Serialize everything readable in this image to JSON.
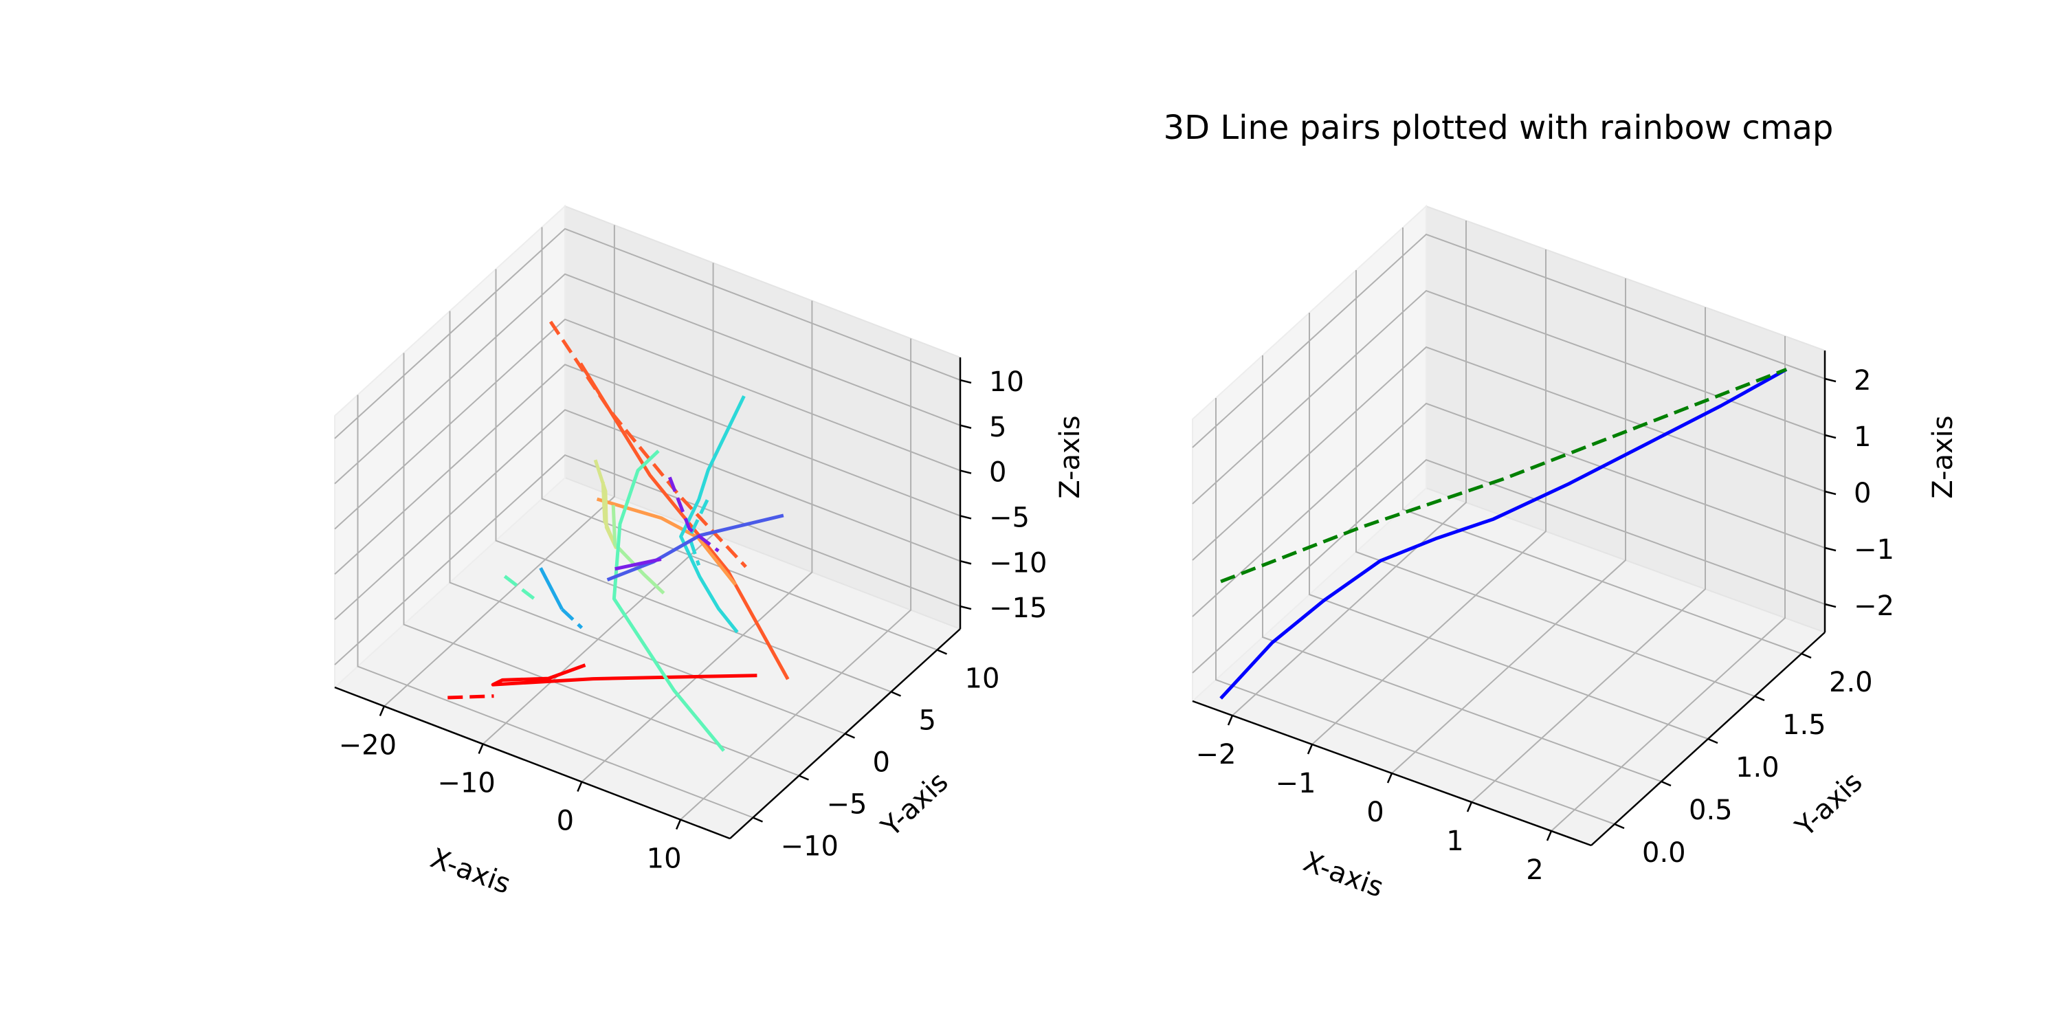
{
  "chart_data": [
    {
      "type": "line",
      "title": "",
      "xlabel": "X-axis",
      "ylabel": "Y-axis",
      "zlabel": "Z-axis",
      "xlim": [
        -25,
        17
      ],
      "ylim": [
        -12,
        15
      ],
      "zlim": [
        -19,
        14
      ],
      "xticks": [
        "−20",
        "−10",
        "0",
        "10"
      ],
      "yticks": [
        "−10",
        "−5",
        "0",
        "5",
        "10"
      ],
      "zticks": [
        "−15",
        "−10",
        "−5",
        "0",
        "5",
        "10"
      ],
      "grid": true,
      "series": [
        {
          "color": "#ff0000",
          "style": "solid",
          "points": [
            [
              -2,
              -8,
              -10
            ],
            [
              -5,
              -9,
              -12
            ],
            [
              -9,
              -10,
              -13
            ],
            [
              -10,
              -10,
              -14
            ],
            [
              -3,
              -6,
              -14
            ],
            [
              5,
              -2,
              -14
            ],
            [
              9,
              0,
              -14
            ]
          ]
        },
        {
          "color": "#ff0000",
          "style": "dashed",
          "points": [
            [
              -13,
              -12,
              -15
            ],
            [
              -9,
              -11,
              -14
            ]
          ]
        },
        {
          "color": "#ff5a2a",
          "style": "solid",
          "points": [
            [
              -17,
              8,
              5
            ],
            [
              -6,
              4,
              0
            ],
            [
              5,
              1,
              -4
            ],
            [
              15,
              -3,
              -9
            ]
          ]
        },
        {
          "color": "#ff5a2a",
          "style": "dashed",
          "points": [
            [
              -22,
              10,
              6
            ],
            [
              -13,
              7,
              2
            ],
            [
              -3,
              4,
              -1
            ],
            [
              6,
              2,
              -4
            ]
          ]
        },
        {
          "color": "#ff9a4a",
          "style": "solid",
          "points": [
            [
              -8,
              0,
              0
            ],
            [
              -3,
              2,
              -2
            ],
            [
              0,
              3,
              -4
            ],
            [
              2,
              3,
              -6
            ],
            [
              4,
              3,
              -8
            ]
          ]
        },
        {
          "color": "#d6e58a",
          "style": "solid",
          "points": [
            [
              -10,
              2,
              2
            ],
            [
              -8,
              1,
              0
            ],
            [
              -7,
              0,
              -3
            ],
            [
              -6,
              0,
              -5
            ],
            [
              -9,
              2,
              -5
            ],
            [
              -11,
              4,
              -3
            ]
          ]
        },
        {
          "color": "#a6f0a0",
          "style": "solid",
          "points": [
            [
              -9,
              3,
              -4
            ],
            [
              -7,
              1,
              -6
            ],
            [
              -3,
              0,
              -7
            ],
            [
              0,
              -1,
              -7
            ]
          ]
        },
        {
          "color": "#5ef5b8",
          "style": "solid",
          "points": [
            [
              -6,
              5,
              2
            ],
            [
              -10,
              7,
              -4
            ],
            [
              -11,
              6,
              -10
            ],
            [
              -8,
              2,
              -14
            ],
            [
              2,
              -2,
              -17
            ],
            [
              10,
              -5,
              -18
            ]
          ]
        },
        {
          "color": "#5ef5b8",
          "style": "dashed",
          "points": [
            [
              -16,
              -2,
              -11
            ],
            [
              -12,
              -3,
              -11
            ]
          ]
        },
        {
          "color": "#2cd8d8",
          "style": "solid",
          "points": [
            [
              4,
              4,
              14
            ],
            [
              3,
              3,
              10
            ],
            [
              2,
              2,
              6
            ],
            [
              1,
              2,
              2
            ],
            [
              0,
              1,
              -2
            ],
            [
              2,
              1,
              -6
            ],
            [
              4,
              1,
              -9
            ],
            [
              6,
              1,
              -11
            ]
          ]
        },
        {
          "color": "#2cd8d8",
          "style": "dashed",
          "points": [
            [
              1,
              3,
              1
            ],
            [
              0,
              2,
              -3
            ],
            [
              1,
              2,
              -6
            ]
          ]
        },
        {
          "color": "#1ea8e8",
          "style": "solid",
          "points": [
            [
              -14,
              0,
              -11
            ],
            [
              -9,
              -3,
              -11
            ]
          ]
        },
        {
          "color": "#1ea8e8",
          "style": "dashed",
          "points": [
            [
              -9,
              -3,
              -11
            ],
            [
              -6,
              -4,
              -11
            ]
          ]
        },
        {
          "color": "#4a5ae8",
          "style": "solid",
          "points": [
            [
              -6,
              -1,
              -8
            ],
            [
              -2,
              0,
              -5
            ],
            [
              2,
              1,
              -1
            ],
            [
              10,
              2,
              4
            ]
          ]
        },
        {
          "color": "#7a1ee8",
          "style": "solid",
          "points": [
            [
              -7,
              1,
              -9
            ],
            [
              -3,
              2,
              -7
            ]
          ]
        },
        {
          "color": "#7a1ee8",
          "style": "dashed",
          "points": [
            [
              -3,
              3,
              2
            ],
            [
              0,
              2,
              -2
            ],
            [
              4,
              1,
              -2
            ]
          ]
        }
      ]
    },
    {
      "type": "line",
      "title": "3D Line pairs plotted with rainbow cmap",
      "xlabel": "X-axis",
      "ylabel": "Y-axis",
      "zlabel": "Z-axis",
      "xlim": [
        -2.2,
        2.2
      ],
      "ylim": [
        -0.1,
        2.2
      ],
      "zlim": [
        -2.0,
        2.1
      ],
      "xticks": [
        "−2",
        "−1",
        "0",
        "1",
        "2"
      ],
      "yticks": [
        "0.0",
        "0.5",
        "1.0",
        "1.5",
        "2.0"
      ],
      "zticks": [
        "−2",
        "−1",
        "0",
        "1",
        "2"
      ],
      "grid": true,
      "series": [
        {
          "color": "#0000ff",
          "style": "solid",
          "points": [
            [
              -2,
              0,
              -2
            ],
            [
              -1.6,
              0.15,
              -1.2
            ],
            [
              -1.2,
              0.3,
              -0.6
            ],
            [
              -0.8,
              0.5,
              -0.1
            ],
            [
              -0.4,
              0.7,
              0.15
            ],
            [
              0,
              0.9,
              0.35
            ],
            [
              0.5,
              1.2,
              0.7
            ],
            [
              1,
              1.5,
              1.1
            ],
            [
              1.5,
              1.8,
              1.5
            ],
            [
              2,
              2,
              2
            ]
          ]
        },
        {
          "color": "#008000",
          "style": "dashed",
          "points": [
            [
              -2,
              0,
              -0.3
            ],
            [
              -1,
              0.5,
              0.3
            ],
            [
              0,
              1,
              0.8
            ],
            [
              1,
              1.5,
              1.4
            ],
            [
              2,
              2,
              2
            ]
          ]
        }
      ]
    }
  ]
}
